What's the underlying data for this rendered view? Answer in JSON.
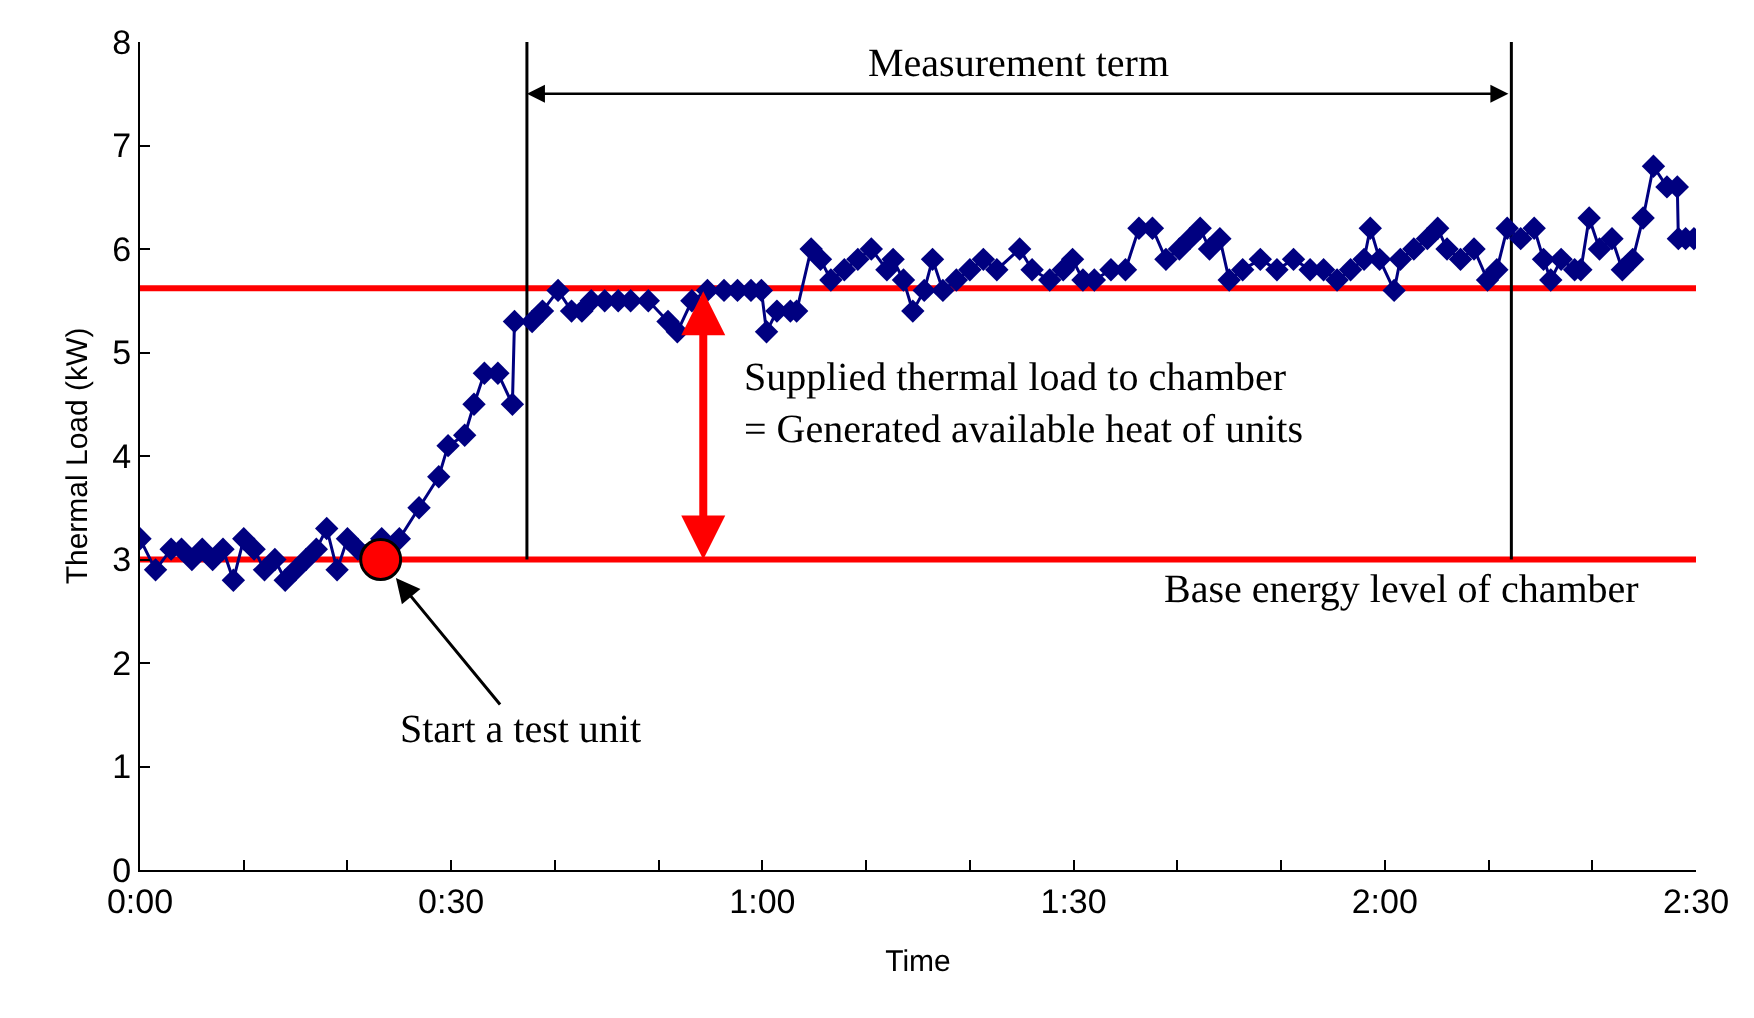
{
  "chart_data": {
    "type": "line",
    "xlabel": "Time",
    "ylabel": "Thermal Load (kW)",
    "xlim": [
      0,
      150
    ],
    "ylim": [
      0,
      8
    ],
    "xticks": [
      {
        "value": 0,
        "label": "0:00"
      },
      {
        "value": 10,
        "label": null
      },
      {
        "value": 20,
        "label": null
      },
      {
        "value": 30,
        "label": "0:30"
      },
      {
        "value": 40,
        "label": null
      },
      {
        "value": 50,
        "label": null
      },
      {
        "value": 60,
        "label": "1:00"
      },
      {
        "value": 70,
        "label": null
      },
      {
        "value": 80,
        "label": null
      },
      {
        "value": 90,
        "label": "1:30"
      },
      {
        "value": 100,
        "label": null
      },
      {
        "value": 110,
        "label": null
      },
      {
        "value": 120,
        "label": "2:00"
      },
      {
        "value": 130,
        "label": null
      },
      {
        "value": 140,
        "label": null
      },
      {
        "value": 150,
        "label": "2:30"
      }
    ],
    "yticks": [
      0,
      1,
      2,
      3,
      4,
      5,
      6,
      7,
      8
    ],
    "marker": "diamond",
    "line_style": "solid",
    "series": [
      {
        "color": "#000080",
        "x": [
          0,
          1.5,
          3,
          4,
          5,
          6,
          7,
          8,
          9,
          10,
          11,
          12,
          13,
          14,
          15,
          16,
          17,
          18,
          19,
          20,
          21,
          23.3,
          25,
          26.9,
          28.8,
          29.7,
          31.3,
          32.2,
          33.2,
          34.5,
          35.9,
          36.1,
          37.8,
          38.8,
          40.3,
          41.6,
          42.6,
          43.5,
          44.8,
          46.1,
          47.3,
          49,
          50.9,
          51.8,
          53.2,
          54.7,
          56.3,
          57.6,
          58.9,
          59.9,
          60.4,
          61.4,
          62.7,
          63.3,
          64.7,
          65.6,
          66.6,
          67.9,
          69.2,
          70.5,
          72,
          72.6,
          73.6,
          74.5,
          75.6,
          76.4,
          77.4,
          78.7,
          80,
          81.3,
          82.6,
          84.8,
          86,
          87.7,
          89,
          89.9,
          90.9,
          92,
          93.6,
          95,
          96.3,
          97.6,
          98.9,
          100.2,
          101.2,
          102.2,
          103.1,
          104.1,
          105,
          106.3,
          108,
          109.6,
          111.2,
          112.8,
          114.1,
          115.4,
          116.7,
          118,
          118.6,
          119.5,
          120.9,
          121.5,
          122.8,
          124.1,
          125.1,
          126,
          127.3,
          128.6,
          129.9,
          130.8,
          131.8,
          133.1,
          134.4,
          135.3,
          136,
          137,
          138.3,
          138.9,
          139.7,
          140.7,
          141.9,
          142.9,
          143.9,
          144.9,
          145.9,
          147.2,
          148.2,
          148.3,
          149,
          149.8
        ],
        "values": [
          3.2,
          2.9,
          3.1,
          3.1,
          3.0,
          3.1,
          3.0,
          3.1,
          2.8,
          3.2,
          3.1,
          2.9,
          3.0,
          2.8,
          2.9,
          3.0,
          3.1,
          3.3,
          2.9,
          3.2,
          3.1,
          3.2,
          3.2,
          3.5,
          3.8,
          4.1,
          4.2,
          4.5,
          4.8,
          4.8,
          4.5,
          5.3,
          5.3,
          5.4,
          5.6,
          5.4,
          5.4,
          5.5,
          5.5,
          5.5,
          5.5,
          5.5,
          5.3,
          5.2,
          5.5,
          5.6,
          5.6,
          5.6,
          5.6,
          5.6,
          5.2,
          5.4,
          5.4,
          5.4,
          6.0,
          5.9,
          5.7,
          5.8,
          5.9,
          6.0,
          5.8,
          5.9,
          5.7,
          5.4,
          5.6,
          5.9,
          5.6,
          5.7,
          5.8,
          5.9,
          5.8,
          6.0,
          5.8,
          5.7,
          5.8,
          5.9,
          5.7,
          5.7,
          5.8,
          5.8,
          6.2,
          6.2,
          5.9,
          6.0,
          6.1,
          6.2,
          6.0,
          6.1,
          5.7,
          5.8,
          5.9,
          5.8,
          5.9,
          5.8,
          5.8,
          5.7,
          5.8,
          5.9,
          6.2,
          5.9,
          5.6,
          5.9,
          6.0,
          6.1,
          6.2,
          6.0,
          5.9,
          6.0,
          5.7,
          5.8,
          6.2,
          6.1,
          6.2,
          5.9,
          5.7,
          5.9,
          5.8,
          5.8,
          6.3,
          6.0,
          6.1,
          5.8,
          5.9,
          6.3,
          6.8,
          6.6,
          6.6,
          6.1,
          6.1,
          6.1
        ]
      },
      {
        "type": "scatter",
        "marker": "circle",
        "color": "#ff0000",
        "x": [
          23.2
        ],
        "values": [
          3.0
        ]
      }
    ],
    "ref_lines": [
      {
        "axis": "y",
        "value": 5.62,
        "label": null,
        "color": "#ff0000"
      },
      {
        "axis": "y",
        "value": 3.0,
        "label": "Base energy level of chamber",
        "color": "#ff0000"
      },
      {
        "axis": "x",
        "value": 37.3,
        "label": null,
        "color": "#000000"
      },
      {
        "axis": "x",
        "value": 132.2,
        "label": null,
        "color": "#000000"
      }
    ],
    "annotations": [
      "Measurement term",
      "Supplied thermal load to chamber\n= Generated available heat of units",
      {
        "text": "Start a test unit",
        "x": 23.2,
        "y": 3.0
      }
    ]
  }
}
